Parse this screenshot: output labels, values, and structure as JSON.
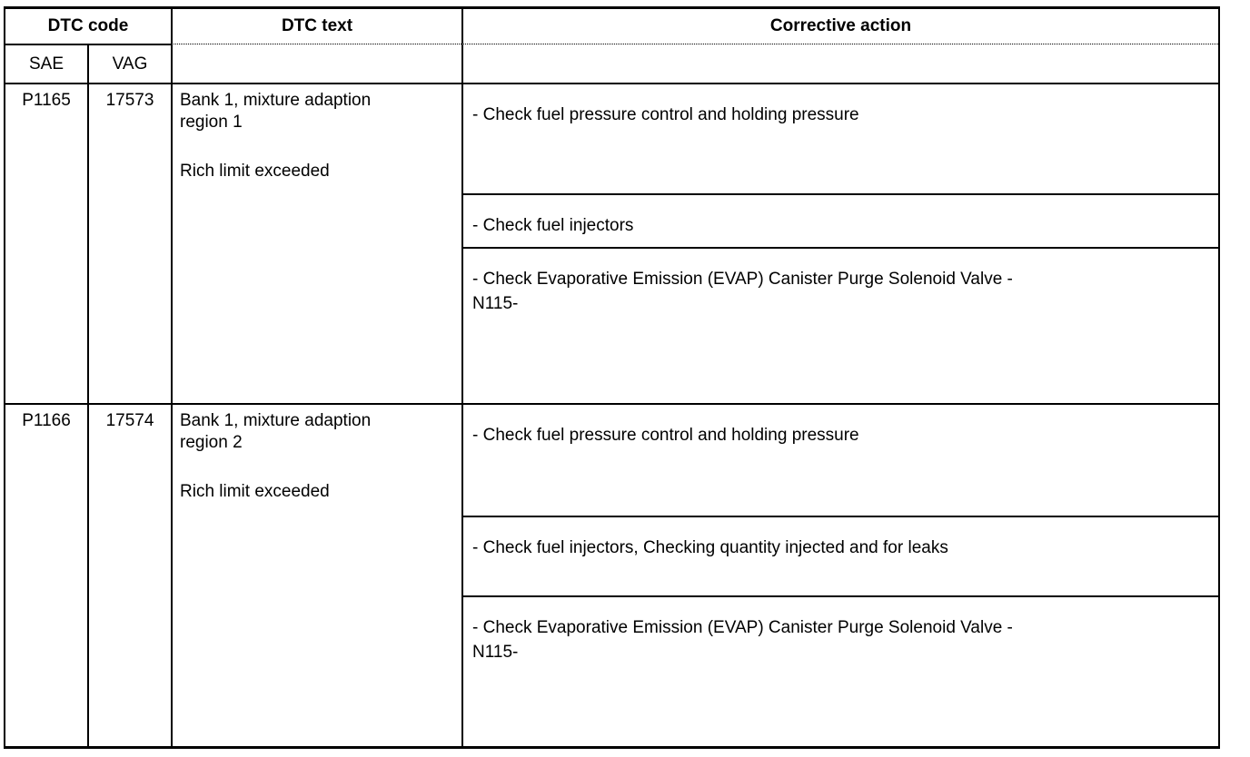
{
  "document": {
    "colors": {
      "background": "#ffffff",
      "text": "#000000",
      "border": "#000000"
    },
    "table": {
      "header": {
        "dtc_code": "DTC code",
        "dtc_text": "DTC text",
        "corrective_action": "Corrective action",
        "sae": "SAE",
        "vag": "VAG"
      },
      "rows": [
        {
          "sae_code": "P1165",
          "vag_code": "17573",
          "dtc_text": "Bank 1, mixture adaption\nregion 1",
          "dtc_condition": "Rich limit exceeded",
          "corrective_actions": [
            "- Check fuel pressure control and holding pressure",
            "- Check fuel injectors",
            "- Check Evaporative Emission (EVAP) Canister Purge Solenoid Valve -\nN115-"
          ]
        },
        {
          "sae_code": "P1166",
          "vag_code": "17574",
          "dtc_text": "Bank 1, mixture adaption\nregion 2",
          "dtc_condition": "Rich limit exceeded",
          "corrective_actions": [
            "- Check fuel pressure control and holding pressure",
            "- Check fuel injectors, Checking quantity injected and for leaks",
            "- Check Evaporative Emission (EVAP) Canister Purge Solenoid Valve -\nN115-"
          ]
        }
      ]
    }
  }
}
